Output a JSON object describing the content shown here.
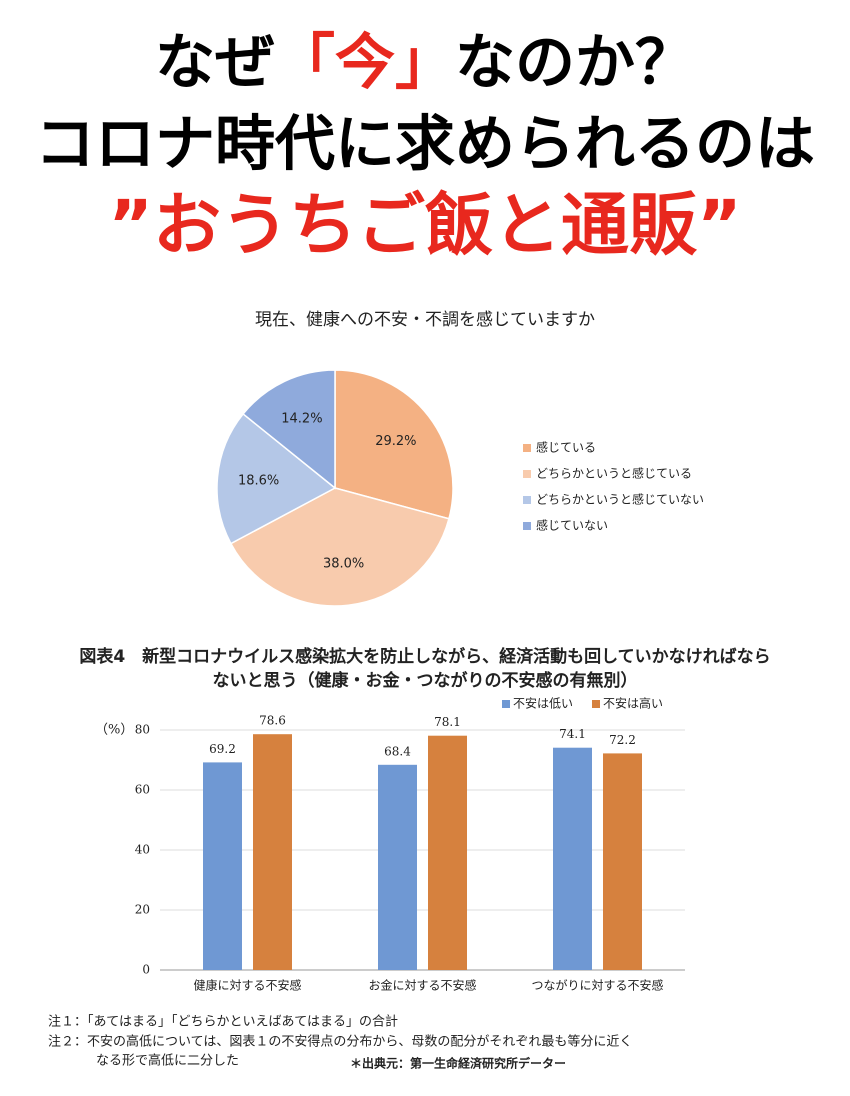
{
  "header": {
    "line1": [
      "なぜ",
      "「今」",
      "なのか？"
    ],
    "line2": "コロナ時代に求められるのは",
    "line3": "”おうちご飯と通販”"
  },
  "chart_data": [
    {
      "type": "pie",
      "title": "現在、健康への不安・不調を感じていますか",
      "categories": [
        "感じている",
        "どちらかというと感じている",
        "どちらかというと感じていない",
        "感じていない"
      ],
      "values": [
        29.2,
        38.0,
        18.6,
        14.2
      ],
      "value_labels": [
        "29.2%",
        "38.0%",
        "18.6%",
        "14.2%"
      ],
      "colors": [
        "#f4b183",
        "#f8cbad",
        "#b4c7e7",
        "#8faadc"
      ]
    },
    {
      "type": "bar",
      "title_lines": [
        "図表4　新型コロナウイルス感染拡大を防止しながら、経済活動も回していかなければなら",
        "ないと思う（健康・お金・つながりの不安感の有無別）"
      ],
      "y_label": "（%）",
      "categories": [
        "健康に対する不安感",
        "お金に対する不安感",
        "つながりに対する不安感"
      ],
      "series": [
        {
          "name": "不安は低い",
          "color": "#6f98d3",
          "values": [
            69.2,
            68.4,
            74.1
          ]
        },
        {
          "name": "不安は高い",
          "color": "#d6813e",
          "values": [
            78.6,
            78.1,
            72.2
          ]
        }
      ],
      "ylim": [
        0,
        80
      ],
      "yticks": [
        0,
        20,
        40,
        60,
        80
      ],
      "grid": true
    }
  ],
  "notes": [
    "注１：「あてはまる」「どちらかといえばあてはまる」の合計",
    "注２：不安の高低については、図表１の不安得点の分布から、母数の配分がそれぞれ最も等分に近く",
    "なる形で高低に二分した"
  ],
  "source": "＊出典元：第一生命経済研究所データー"
}
